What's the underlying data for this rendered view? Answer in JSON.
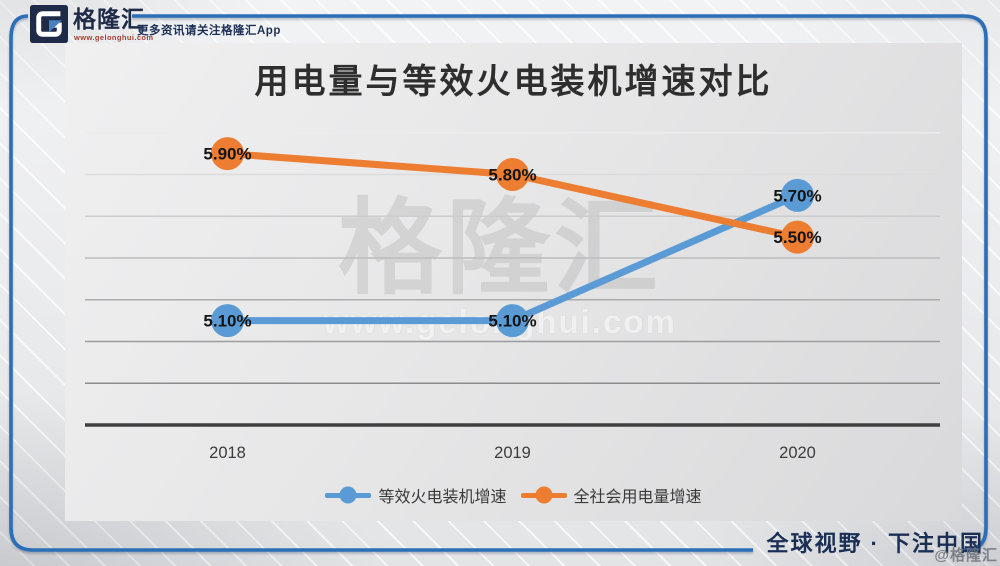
{
  "header": {
    "logo_text": "格隆汇",
    "logo_url": "www.gelonghui.com",
    "tagline": "更多资讯请关注格隆汇App"
  },
  "watermark": {
    "brand": "格隆汇",
    "url": "www.gelonghui.com",
    "corner_badge": "@格隆汇"
  },
  "footer": {
    "slogan": "全球视野 · 下注中国"
  },
  "colors": {
    "series_blue": "#5B9BD5",
    "series_orange": "#ED7D31",
    "frame_blue": "#2C6FB7",
    "brand_navy": "#1D2B48",
    "axis_line": "#3F3F3F"
  },
  "chart_data": {
    "type": "line",
    "title": "用电量与等效火电装机增速对比",
    "categories": [
      "2018",
      "2019",
      "2020"
    ],
    "series": [
      {
        "name": "等效火电装机增速",
        "color": "#5B9BD5",
        "values": [
          5.1,
          5.1,
          5.7
        ],
        "labels": [
          "5.10%",
          "5.10%",
          "5.70%"
        ]
      },
      {
        "name": "全社会用电量增速",
        "color": "#ED7D31",
        "values": [
          5.9,
          5.8,
          5.5
        ],
        "labels": [
          "5.90%",
          "5.80%",
          "5.50%"
        ]
      }
    ],
    "xlabel": "",
    "ylabel": "",
    "ylim": [
      4.6,
      6.2
    ],
    "gridline_step": 0.2,
    "y_axis_labels_visible": false,
    "grid": true,
    "legend_position": "bottom"
  }
}
